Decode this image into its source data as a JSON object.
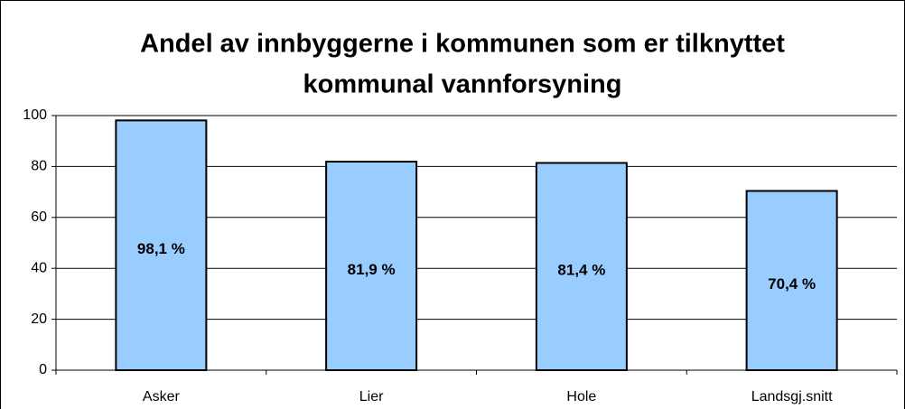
{
  "chart_data": {
    "type": "bar",
    "title": [
      "Andel av innbyggerne i kommunen som er tilknyttet",
      "kommunal vannforsyning"
    ],
    "categories": [
      "Asker",
      "Lier",
      "Hole",
      "Landsgj.snitt"
    ],
    "values": [
      98.1,
      81.9,
      81.4,
      70.4
    ],
    "value_labels": [
      "98,1 %",
      "81,9 %",
      "81,4 %",
      "70,4 %"
    ],
    "color": "#99ccff",
    "ylim": [
      0,
      100
    ],
    "yticks": [
      0,
      20,
      40,
      60,
      80,
      100
    ],
    "grid": true
  }
}
